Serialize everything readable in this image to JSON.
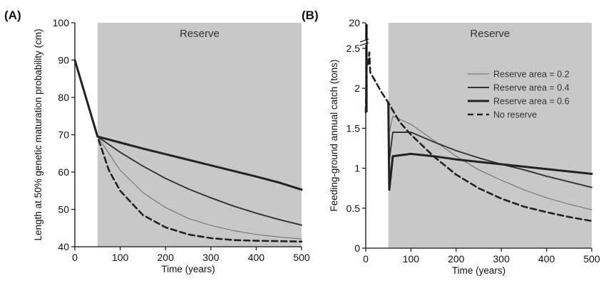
{
  "chart_data": [
    {
      "panel_label": "(A)",
      "type": "line",
      "shaded_region": {
        "label": "Reserve",
        "x_start": 50,
        "x_end": 500
      },
      "xlabel": "Time (years)",
      "ylabel": "Length at 50% genetic maturation probability (cm)",
      "xlim": [
        0,
        500
      ],
      "ylim": [
        40,
        100
      ],
      "x_ticks": [
        "0",
        "100",
        "200",
        "300",
        "400",
        "500"
      ],
      "y_ticks": [
        "40",
        "50",
        "60",
        "70",
        "80",
        "90",
        "100"
      ],
      "series": [
        {
          "name": "Reserve area = 0.2",
          "color": "#777777",
          "style": "thin",
          "x": [
            0,
            50,
            100,
            150,
            200,
            250,
            300,
            350,
            400,
            450,
            500
          ],
          "y": [
            90,
            69.5,
            60.5,
            54.5,
            50.5,
            47.6,
            45.7,
            44.3,
            43.3,
            42.6,
            42.1
          ]
        },
        {
          "name": "Reserve area = 0.4",
          "color": "#333333",
          "style": "medium",
          "x": [
            0,
            50,
            100,
            150,
            200,
            250,
            300,
            350,
            400,
            450,
            500
          ],
          "y": [
            90,
            69.5,
            65.3,
            61.6,
            58.3,
            55.5,
            53.1,
            50.9,
            49.0,
            47.3,
            45.8
          ]
        },
        {
          "name": "Reserve area = 0.6",
          "color": "#222222",
          "style": "thick",
          "x": [
            0,
            50,
            100,
            150,
            200,
            250,
            300,
            350,
            400,
            450,
            500
          ],
          "y": [
            90,
            69.5,
            67.9,
            66.3,
            64.8,
            63.3,
            61.8,
            60.3,
            58.8,
            57.2,
            55.3
          ]
        },
        {
          "name": "No reserve",
          "color": "#222222",
          "style": "dashed",
          "x": [
            0,
            50,
            75,
            100,
            150,
            200,
            250,
            300,
            350,
            400,
            450,
            500
          ],
          "y": [
            90,
            69.5,
            60.5,
            55,
            48.5,
            45.2,
            43.3,
            42.3,
            41.8,
            41.6,
            41.5,
            41.4
          ]
        }
      ]
    },
    {
      "panel_label": "(B)",
      "type": "line",
      "shaded_region": {
        "label": "Reserve",
        "x_start": 50,
        "x_end": 500
      },
      "xlabel": "Time (years)",
      "ylabel": "Feeding-ground annual catch (tons)",
      "xlim": [
        0,
        500
      ],
      "ylim": [
        0,
        2.5
      ],
      "axis_break": {
        "above": 2.5,
        "top_label": "20"
      },
      "x_ticks": [
        "0",
        "100",
        "200",
        "300",
        "400",
        "500"
      ],
      "y_ticks": [
        "0",
        "0.5",
        "1",
        "1.5",
        "2",
        "2.5"
      ],
      "legend": {
        "position": "top-right",
        "entries": [
          "Reserve area = 0.2",
          "Reserve area = 0.4",
          "Reserve area = 0.6",
          "No reserve"
        ]
      },
      "series": [
        {
          "name": "Reserve area = 0.2",
          "color": "#777777",
          "style": "thin",
          "x": [
            50,
            52,
            60,
            100,
            150,
            200,
            250,
            300,
            350,
            400,
            450,
            500
          ],
          "y": [
            1.82,
            1.45,
            1.65,
            1.55,
            1.35,
            1.15,
            0.98,
            0.85,
            0.73,
            0.63,
            0.55,
            0.48
          ]
        },
        {
          "name": "Reserve area = 0.4",
          "color": "#333333",
          "style": "medium",
          "x": [
            50,
            52,
            60,
            100,
            150,
            200,
            250,
            300,
            350,
            400,
            450,
            500
          ],
          "y": [
            1.82,
            1.1,
            1.45,
            1.45,
            1.33,
            1.22,
            1.13,
            1.05,
            0.98,
            0.9,
            0.83,
            0.76
          ]
        },
        {
          "name": "Reserve area = 0.6",
          "color": "#222222",
          "style": "thick",
          "x": [
            50,
            52,
            60,
            100,
            150,
            200,
            250,
            300,
            350,
            400,
            450,
            500
          ],
          "y": [
            1.82,
            0.73,
            1.15,
            1.18,
            1.15,
            1.11,
            1.08,
            1.05,
            1.02,
            0.99,
            0.96,
            0.93
          ]
        },
        {
          "name": "No reserve",
          "color": "#222222",
          "style": "dashed",
          "x": [
            0,
            2,
            5,
            8,
            10,
            15,
            25,
            35,
            50,
            75,
            100,
            150,
            200,
            250,
            300,
            350,
            400,
            450,
            500
          ],
          "y": [
            1.7,
            2.35,
            2.3,
            2.45,
            2.2,
            2.15,
            2.05,
            1.95,
            1.82,
            1.58,
            1.42,
            1.15,
            0.92,
            0.75,
            0.62,
            0.52,
            0.45,
            0.39,
            0.34
          ]
        }
      ]
    }
  ]
}
